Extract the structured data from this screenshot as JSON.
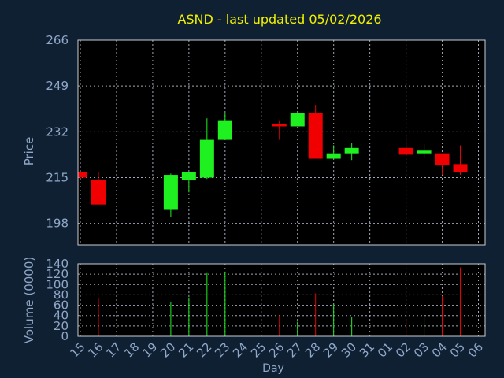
{
  "chart_data": [
    {
      "type": "candlestick",
      "title": "ASND - last updated 05/02/2026",
      "ylabel": "Price",
      "xlabel": "",
      "ylim": [
        190,
        266
      ],
      "yticks": [
        266,
        249,
        232,
        215,
        198
      ],
      "grid": true,
      "categories": [
        "15",
        "16",
        "17",
        "18",
        "19",
        "20",
        "21",
        "22",
        "23",
        "24",
        "25",
        "26",
        "27",
        "28",
        "29",
        "30",
        "31",
        "01",
        "02",
        "03",
        "04",
        "05",
        "06"
      ],
      "candles": [
        {
          "x": "15",
          "open": 217,
          "high": 217,
          "low": 215,
          "close": 215
        },
        {
          "x": "16",
          "open": 214,
          "high": 217,
          "low": 205,
          "close": 205
        },
        {
          "x": "20",
          "open": 203,
          "high": 216.5,
          "low": 200.5,
          "close": 216
        },
        {
          "x": "21",
          "open": 214,
          "high": 217,
          "low": 209.5,
          "close": 217
        },
        {
          "x": "22",
          "open": 215,
          "high": 237,
          "low": 214.5,
          "close": 229
        },
        {
          "x": "23",
          "open": 229,
          "high": 239,
          "low": 229,
          "close": 236
        },
        {
          "x": "26",
          "open": 235,
          "high": 236,
          "low": 229,
          "close": 234
        },
        {
          "x": "27",
          "open": 234,
          "high": 239,
          "low": 234,
          "close": 239
        },
        {
          "x": "28",
          "open": 239,
          "high": 242,
          "low": 222,
          "close": 222
        },
        {
          "x": "29",
          "open": 222,
          "high": 227,
          "low": 222,
          "close": 224
        },
        {
          "x": "30",
          "open": 224,
          "high": 228,
          "low": 221.5,
          "close": 226
        },
        {
          "x": "02",
          "open": 226,
          "high": 231,
          "low": 223,
          "close": 223.5
        },
        {
          "x": "03",
          "open": 224,
          "high": 227.5,
          "low": 222.5,
          "close": 225
        },
        {
          "x": "04",
          "open": 224,
          "high": 224,
          "low": 216,
          "close": 219.5
        },
        {
          "x": "05",
          "open": 220,
          "high": 227,
          "low": 216,
          "close": 217
        }
      ]
    },
    {
      "type": "bar",
      "ylabel": "Volume (0000)",
      "xlabel": "Day",
      "ylim": [
        0,
        140
      ],
      "yticks": [
        140,
        120,
        100,
        80,
        60,
        40,
        20,
        0
      ],
      "categories": [
        "15",
        "16",
        "17",
        "18",
        "19",
        "20",
        "21",
        "22",
        "23",
        "24",
        "25",
        "26",
        "27",
        "28",
        "29",
        "30",
        "31",
        "01",
        "02",
        "03",
        "04",
        "05",
        "06"
      ],
      "values": [
        {
          "x": "16",
          "v": 73,
          "dir": "down"
        },
        {
          "x": "20",
          "v": 67,
          "dir": "up"
        },
        {
          "x": "21",
          "v": 75,
          "dir": "up"
        },
        {
          "x": "22",
          "v": 122,
          "dir": "up"
        },
        {
          "x": "23",
          "v": 125,
          "dir": "up"
        },
        {
          "x": "26",
          "v": 40,
          "dir": "down"
        },
        {
          "x": "27",
          "v": 28,
          "dir": "up"
        },
        {
          "x": "28",
          "v": 83,
          "dir": "down"
        },
        {
          "x": "29",
          "v": 62,
          "dir": "up"
        },
        {
          "x": "30",
          "v": 37,
          "dir": "up"
        },
        {
          "x": "02",
          "v": 33,
          "dir": "down"
        },
        {
          "x": "03",
          "v": 38,
          "dir": "up"
        },
        {
          "x": "04",
          "v": 78,
          "dir": "down"
        },
        {
          "x": "05",
          "v": 133,
          "dir": "down"
        }
      ]
    }
  ],
  "colors": {
    "background": "#102033",
    "plot": "#000000",
    "grid": "#a0a8b4",
    "up": "#1ff01f",
    "down": "#f00000",
    "title": "#f0f000",
    "axis_text": "#8fa8c8"
  }
}
